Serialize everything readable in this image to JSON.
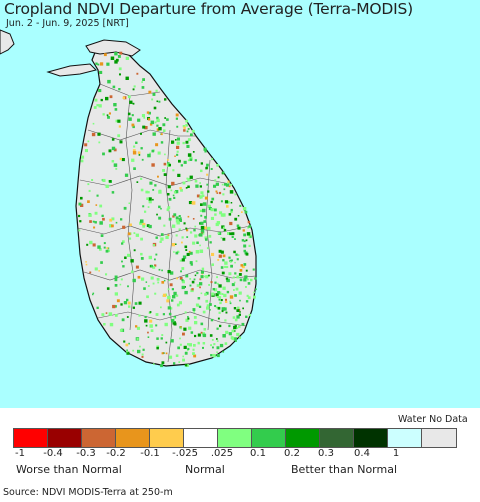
{
  "map": {
    "title": "Cropland NDVI Departure from Average (Terra-MODIS)",
    "subtitle": "Jun. 2 - Jun. 9, 2025 [NRT]",
    "source": "Source: NDVI MODIS-Terra at 250-m",
    "ocean_color": "#aaffff",
    "land_color": "#e8e8e8"
  },
  "legend": {
    "water_no_data": "Water No Data",
    "swatches": [
      {
        "value": "-1",
        "color": "#ff0000"
      },
      {
        "value": "-0.4",
        "color": "#990000"
      },
      {
        "value": "-0.3",
        "color": "#cc6633"
      },
      {
        "value": "-0.2",
        "color": "#e8951c"
      },
      {
        "value": "-0.1",
        "color": "#ffcc4d"
      },
      {
        "value": "-0.025 .025",
        "color": "#ffffff"
      },
      {
        "value": "0.1",
        "color": "#80ff80"
      },
      {
        "value": "0.2",
        "color": "#33cc4d"
      },
      {
        "value": "0.3",
        "color": "#009900"
      },
      {
        "value": "0.4",
        "color": "#336633"
      },
      {
        "value": "1",
        "color": "#003300"
      },
      {
        "value": "water",
        "color": "#ccffff"
      },
      {
        "value": "nodata",
        "color": "#e8e8e8"
      }
    ],
    "ticks": [
      "-1",
      "-0.4",
      "-0.3",
      "-0.2",
      "-0.1",
      "-.025",
      ".025",
      "0.1",
      "0.2",
      "0.3",
      "0.4",
      "1"
    ],
    "worse": "Worse than Normal",
    "normal": "Normal",
    "better": "Better than Normal"
  }
}
